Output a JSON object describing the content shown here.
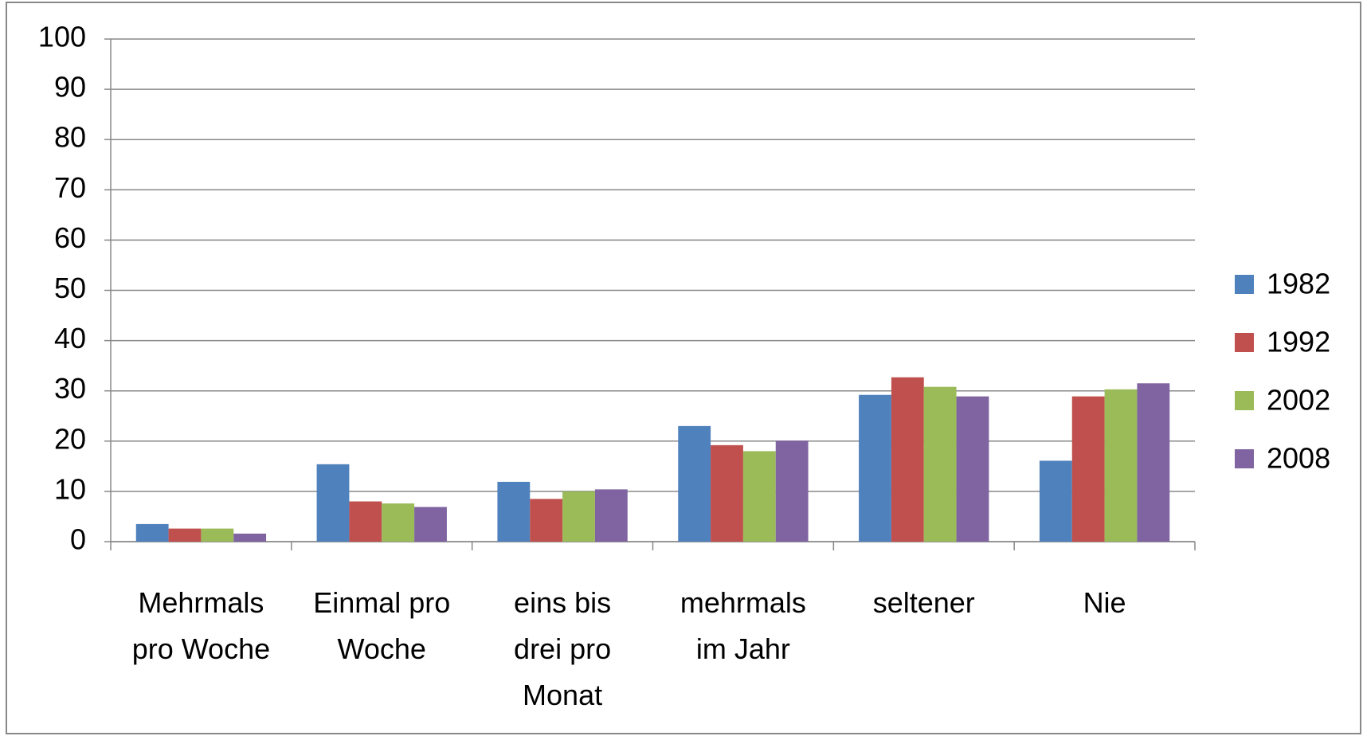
{
  "chart_data": {
    "type": "bar",
    "categories": [
      "Mehrmals pro Woche",
      "Einmal pro Woche",
      "eins bis drei pro Monat",
      "mehrmals im Jahr",
      "seltener",
      "Nie"
    ],
    "series": [
      {
        "name": "1982",
        "color": "#4f81bd",
        "values": [
          3.5,
          15.4,
          11.9,
          23.0,
          29.2,
          16.1
        ]
      },
      {
        "name": "1992",
        "color": "#c0504d",
        "values": [
          2.6,
          8.0,
          8.5,
          19.2,
          32.7,
          28.9
        ]
      },
      {
        "name": "2002",
        "color": "#9bbb59",
        "values": [
          2.6,
          7.6,
          10.0,
          18.0,
          30.8,
          30.3
        ]
      },
      {
        "name": "2008",
        "color": "#8064a2",
        "values": [
          1.6,
          6.9,
          10.4,
          20.1,
          28.9,
          31.5
        ]
      }
    ],
    "ylim": [
      0,
      100
    ],
    "yticks": [
      0,
      10,
      20,
      30,
      40,
      50,
      60,
      70,
      80,
      90,
      100
    ],
    "grid": true,
    "legend": "right"
  }
}
